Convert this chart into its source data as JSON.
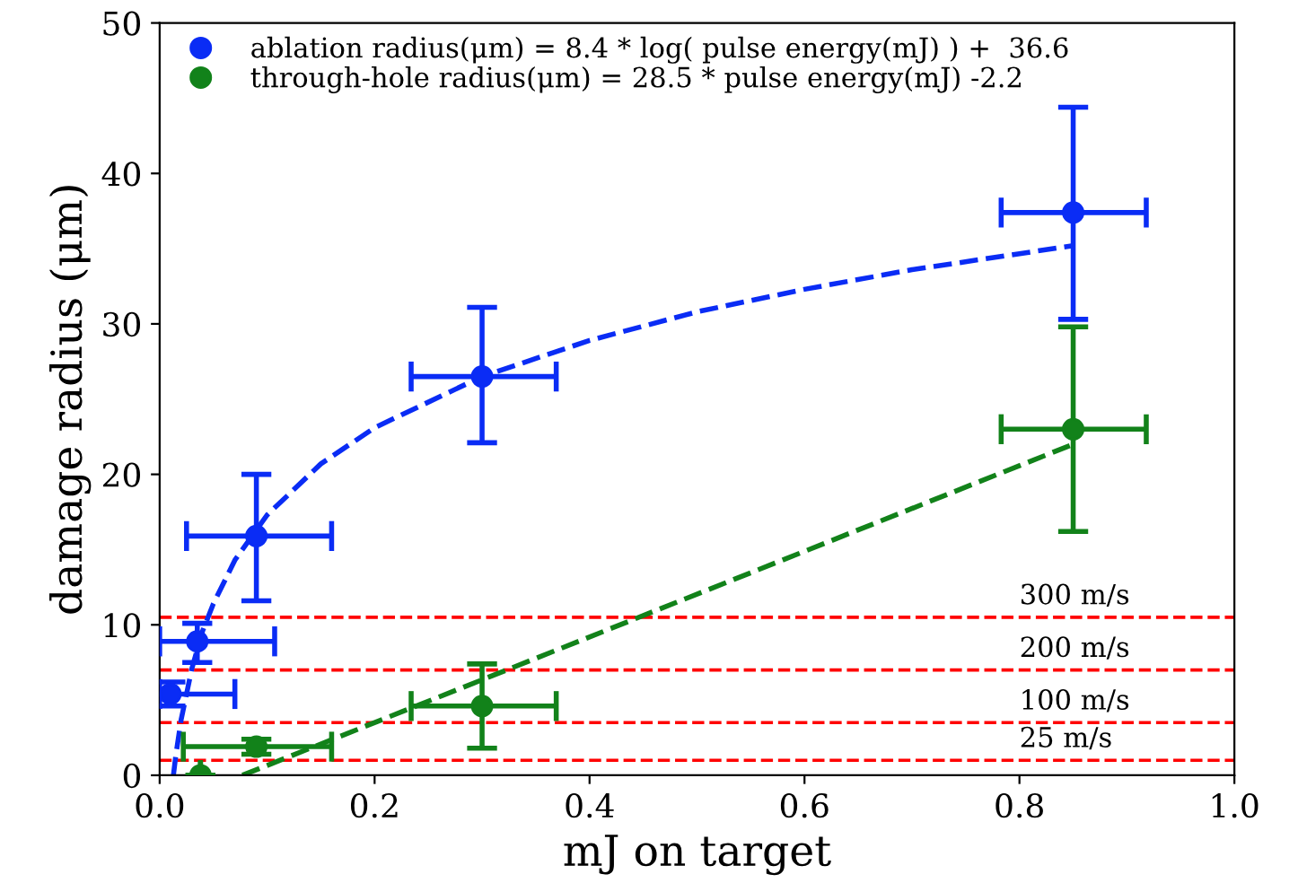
{
  "chart_data": {
    "type": "scatter",
    "xlabel": "mJ on target",
    "ylabel": "damage radius (μm)",
    "xlim": [
      0.0,
      1.0
    ],
    "ylim": [
      0,
      50
    ],
    "xticks": [
      {
        "value": 0.0,
        "label": "0.0"
      },
      {
        "value": 0.2,
        "label": "0.2"
      },
      {
        "value": 0.4,
        "label": "0.4"
      },
      {
        "value": 0.6,
        "label": "0.6"
      },
      {
        "value": 0.8,
        "label": "0.8"
      },
      {
        "value": 1.0,
        "label": "1.0"
      }
    ],
    "yticks": [
      0,
      10,
      20,
      30,
      40,
      50
    ],
    "grid": false,
    "legend": "top left",
    "marker": "circle",
    "series": [
      {
        "name": "ablation radius(μm) = 8.4 * log( pulse energy(mJ) ) +  36.6",
        "color": "#0a2cf5",
        "x": [
          0.01,
          0.035,
          0.09,
          0.3,
          0.85
        ],
        "values": [
          5.4,
          8.9,
          15.9,
          26.5,
          37.4
        ],
        "errors": [
          [
            4.6,
            6.2
          ],
          [
            7.5,
            10.1
          ],
          [
            11.6,
            20.0
          ],
          [
            22.1,
            31.1
          ],
          [
            30.3,
            44.4
          ]
        ],
        "xerrors": [
          [
            0.0,
            0.07
          ],
          [
            0.0,
            0.107
          ],
          [
            0.025,
            0.16
          ],
          [
            0.234,
            0.369
          ],
          [
            0.783,
            0.918
          ]
        ]
      },
      {
        "name": "through-hole radius(μm) = 28.5 * pulse energy(mJ) -2.2",
        "color": "#12821a",
        "x": [
          0.038,
          0.09,
          0.3,
          0.85
        ],
        "values": [
          0.0,
          1.9,
          4.6,
          23.0
        ],
        "errors": [
          null,
          [
            1.4,
            2.4
          ],
          [
            1.8,
            7.4
          ],
          [
            16.2,
            29.8
          ]
        ],
        "xerrors": [
          null,
          [
            0.022,
            0.16
          ],
          [
            0.234,
            0.369
          ],
          [
            0.783,
            0.918
          ]
        ]
      },
      {
        "type": "line",
        "line_style": "dashed",
        "marker": "none",
        "color": "#0a2cf5",
        "x": [
          0.0128,
          0.015,
          0.02,
          0.03,
          0.04,
          0.05,
          0.07,
          0.1,
          0.15,
          0.2,
          0.3,
          0.4,
          0.5,
          0.6,
          0.7,
          0.85
        ],
        "values": [
          0.0,
          1.3,
          3.7,
          7.1,
          9.6,
          11.4,
          14.3,
          17.3,
          20.7,
          23.1,
          26.5,
          28.9,
          30.8,
          32.3,
          33.6,
          35.2
        ]
      },
      {
        "type": "line",
        "line_style": "dashed",
        "marker": "none",
        "color": "#12821a",
        "x": [
          0.077,
          0.85
        ],
        "values": [
          0.0,
          22.0
        ]
      }
    ],
    "ref_lines": [
      {
        "axis": "y",
        "value": 10.5,
        "label": "300 m/s",
        "color": "#ff0000",
        "line_style": "dashed"
      },
      {
        "axis": "y",
        "value": 7.0,
        "label": "200 m/s",
        "color": "#ff0000",
        "line_style": "dashed"
      },
      {
        "axis": "y",
        "value": 3.5,
        "label": "100 m/s",
        "color": "#ff0000",
        "line_style": "dashed"
      },
      {
        "axis": "y",
        "value": 1.0,
        "label": "25 m/s",
        "color": "#ff0000",
        "line_style": "dashed"
      }
    ]
  }
}
